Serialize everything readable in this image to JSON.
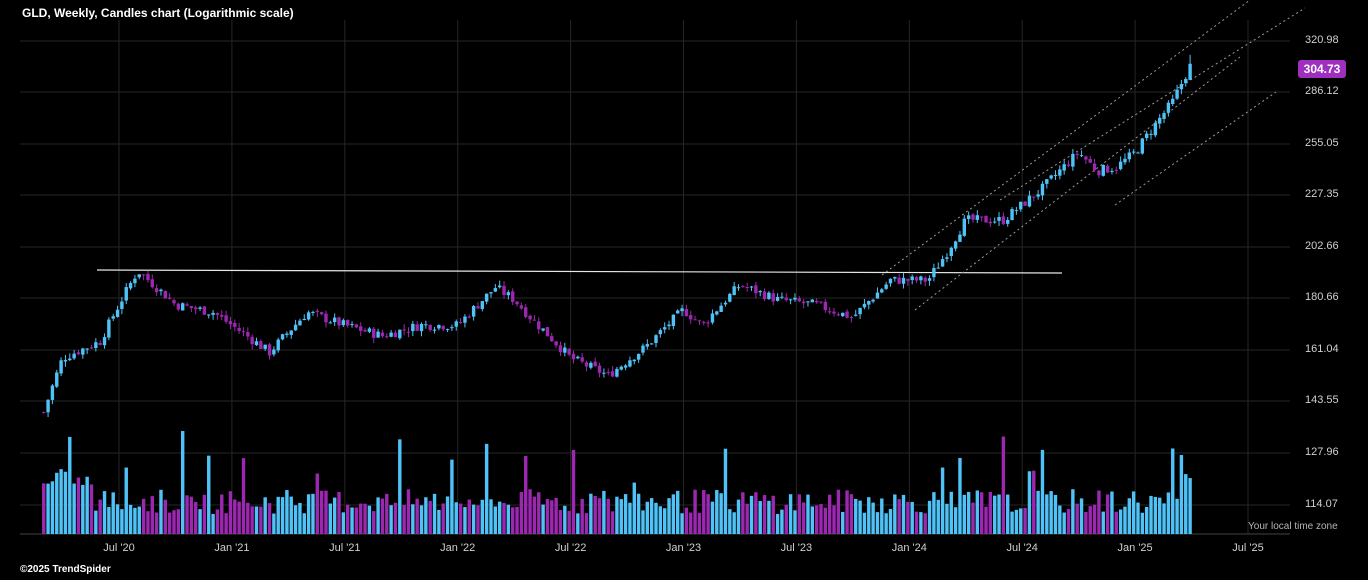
{
  "header": {
    "title": "GLD, Weekly, Candles chart (Logarithmic scale)"
  },
  "footer": {
    "copyright": "©2025 TrendSpider",
    "timezone_note": "Your local time zone"
  },
  "colors": {
    "up": "#4fc3f7",
    "down": "#9c27b0",
    "badge": "#a02fc0",
    "grid": "#262626",
    "background": "#000000"
  },
  "chart_data": {
    "type": "candlestick",
    "title": "GLD, Weekly, Candles chart (Logarithmic scale)",
    "scale": "log",
    "grid": true,
    "y_ticks": [
      "320.98",
      "286.12",
      "255.05",
      "227.35",
      "202.66",
      "180.66",
      "161.04",
      "143.55",
      "127.96",
      "114.07"
    ],
    "x_ticks": [
      "Jul '20",
      "Jan '21",
      "Jul '21",
      "Jan '22",
      "Jul '22",
      "Jan '23",
      "Jul '23",
      "Jan '24",
      "Jul '24",
      "Jan '25",
      "Jul '25"
    ],
    "last_price": "304.73",
    "date_range": [
      "2020-03",
      "2025-04"
    ],
    "price_path_keypoints": [
      {
        "date": "2020-03",
        "close": 146
      },
      {
        "date": "2020-03",
        "close": 140
      },
      {
        "date": "2020-04",
        "close": 158
      },
      {
        "date": "2020-06",
        "close": 164
      },
      {
        "date": "2020-08",
        "close": 192
      },
      {
        "date": "2020-10",
        "close": 178
      },
      {
        "date": "2020-12",
        "close": 175
      },
      {
        "date": "2021-03",
        "close": 160
      },
      {
        "date": "2021-05",
        "close": 175
      },
      {
        "date": "2021-07",
        "close": 170
      },
      {
        "date": "2021-09",
        "close": 166
      },
      {
        "date": "2021-11",
        "close": 170
      },
      {
        "date": "2022-01",
        "close": 170
      },
      {
        "date": "2022-03",
        "close": 185
      },
      {
        "date": "2022-04",
        "close": 180
      },
      {
        "date": "2022-05",
        "close": 172
      },
      {
        "date": "2022-07",
        "close": 158
      },
      {
        "date": "2022-09",
        "close": 152
      },
      {
        "date": "2022-11",
        "close": 162
      },
      {
        "date": "2023-01",
        "close": 176
      },
      {
        "date": "2023-02",
        "close": 170
      },
      {
        "date": "2023-04",
        "close": 186
      },
      {
        "date": "2023-06",
        "close": 180
      },
      {
        "date": "2023-08",
        "close": 178
      },
      {
        "date": "2023-10",
        "close": 173
      },
      {
        "date": "2023-12",
        "close": 188
      },
      {
        "date": "2024-02",
        "close": 188
      },
      {
        "date": "2024-03",
        "close": 200
      },
      {
        "date": "2024-04",
        "close": 215
      },
      {
        "date": "2024-06",
        "close": 215
      },
      {
        "date": "2024-08",
        "close": 230
      },
      {
        "date": "2024-10",
        "close": 250
      },
      {
        "date": "2024-11",
        "close": 240
      },
      {
        "date": "2024-12",
        "close": 242
      },
      {
        "date": "2025-01",
        "close": 250
      },
      {
        "date": "2025-02",
        "close": 265
      },
      {
        "date": "2025-03",
        "close": 280
      },
      {
        "date": "2025-04",
        "close": 305
      }
    ],
    "annotations": [
      {
        "type": "horizontal_resistance_line",
        "value": 192,
        "from": "2020-06",
        "to": "2024-08"
      },
      {
        "type": "dotted_rising_channel",
        "from": "2023-12",
        "to": "2025-07",
        "lines": 3
      }
    ]
  }
}
